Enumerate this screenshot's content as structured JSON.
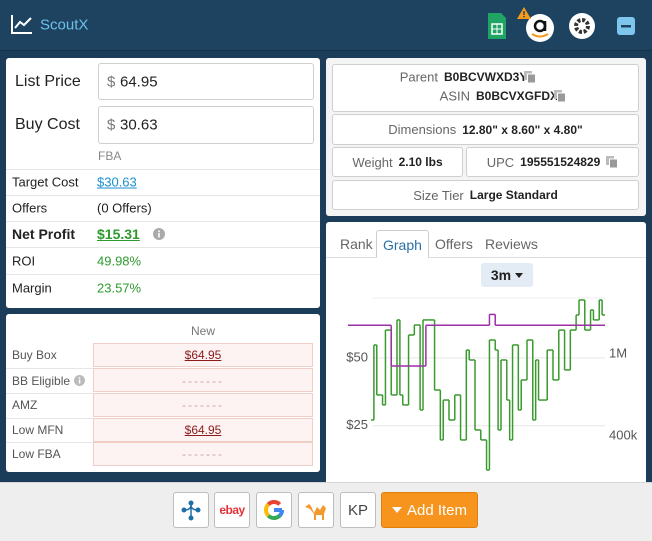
{
  "header": {
    "title": "ScoutX"
  },
  "pricing": {
    "list_price_label": "List Price",
    "list_price_currency": "$",
    "list_price": "64.95",
    "buy_cost_label": "Buy Cost",
    "buy_cost_currency": "$",
    "buy_cost": "30.63",
    "column": "FBA",
    "rows": [
      [
        "Target Cost",
        "$30.63"
      ],
      [
        "Offers",
        "(0 Offers)"
      ],
      [
        "Net Profit",
        "$15.31"
      ],
      [
        "ROI",
        "49.98%"
      ],
      [
        "Margin",
        "23.57%"
      ]
    ]
  },
  "offers": {
    "column": "New",
    "rows": [
      [
        "Buy Box",
        "$64.95"
      ],
      [
        "BB Eligible",
        "-------"
      ],
      [
        "AMZ",
        "-------"
      ],
      [
        "Low MFN",
        "$64.95"
      ],
      [
        "Low FBA",
        "-------"
      ]
    ]
  },
  "product": {
    "parent_label": "Parent",
    "parent": "B0BCVWXD3Y",
    "asin_label": "ASIN",
    "asin": "B0BCVXGFDX",
    "dimensions_label": "Dimensions",
    "dimensions": "12.80\" x 8.60\" x 4.80\"",
    "weight_label": "Weight",
    "weight": "2.10 lbs",
    "upc_label": "UPC",
    "upc": "195551524829",
    "size_tier_label": "Size Tier",
    "size_tier": "Large Standard"
  },
  "tabs": {
    "items": [
      "Rank",
      "Graph",
      "Offers",
      "Reviews"
    ],
    "active": 1
  },
  "chart_data": {
    "type": "line",
    "range": "3m",
    "grid": true,
    "step": true,
    "xlim": [
      0,
      90
    ],
    "ylim": [
      5,
      75
    ],
    "yticks": [
      {
        "value": 25,
        "label": "$25"
      },
      {
        "value": 50,
        "label": "$50"
      }
    ],
    "y2lim": [
      80000,
      1470000
    ],
    "y2ticks": [
      {
        "value": 400000,
        "label": "400k"
      },
      {
        "value": 1000000,
        "label": "1M"
      }
    ],
    "series": [
      {
        "color": "#3a9a2e",
        "axis": "y2",
        "x": [
          9,
          10,
          11,
          13,
          14,
          16,
          18,
          19,
          20,
          22,
          24,
          26,
          27,
          29,
          31,
          33,
          34,
          36,
          38,
          40,
          42,
          43,
          45,
          47,
          49,
          50,
          52,
          53,
          54,
          56,
          57,
          58,
          60,
          61,
          63,
          65,
          66,
          67,
          70,
          72,
          74,
          76,
          78,
          80,
          81,
          83,
          85,
          86,
          88,
          89
        ],
        "values": [
          519000,
          1068000,
          702000,
          629000,
          1177000,
          702000,
          1251000,
          702000,
          629000,
          1141000,
          1214000,
          592000,
          1251000,
          1251000,
          738000,
          373000,
          665000,
          519000,
          702000,
          373000,
          1031000,
          958000,
          446000,
          373000,
          153000,
          1104000,
          1031000,
          446000,
          958000,
          665000,
          373000,
          1068000,
          592000,
          812000,
          1104000,
          519000,
          958000,
          665000,
          1031000,
          812000,
          1177000,
          885000,
          1177000,
          1287000,
          1397000,
          1177000,
          1324000,
          1251000,
          1397000,
          1287000
        ]
      },
      {
        "color": "#9b2fa6",
        "x": [
          1,
          16,
          28,
          50,
          52
        ],
        "values": [
          62,
          47,
          62,
          66,
          62
        ]
      }
    ]
  },
  "footer": {
    "ebay": "ebay",
    "kp": "KP",
    "add_item": "Add Item"
  }
}
